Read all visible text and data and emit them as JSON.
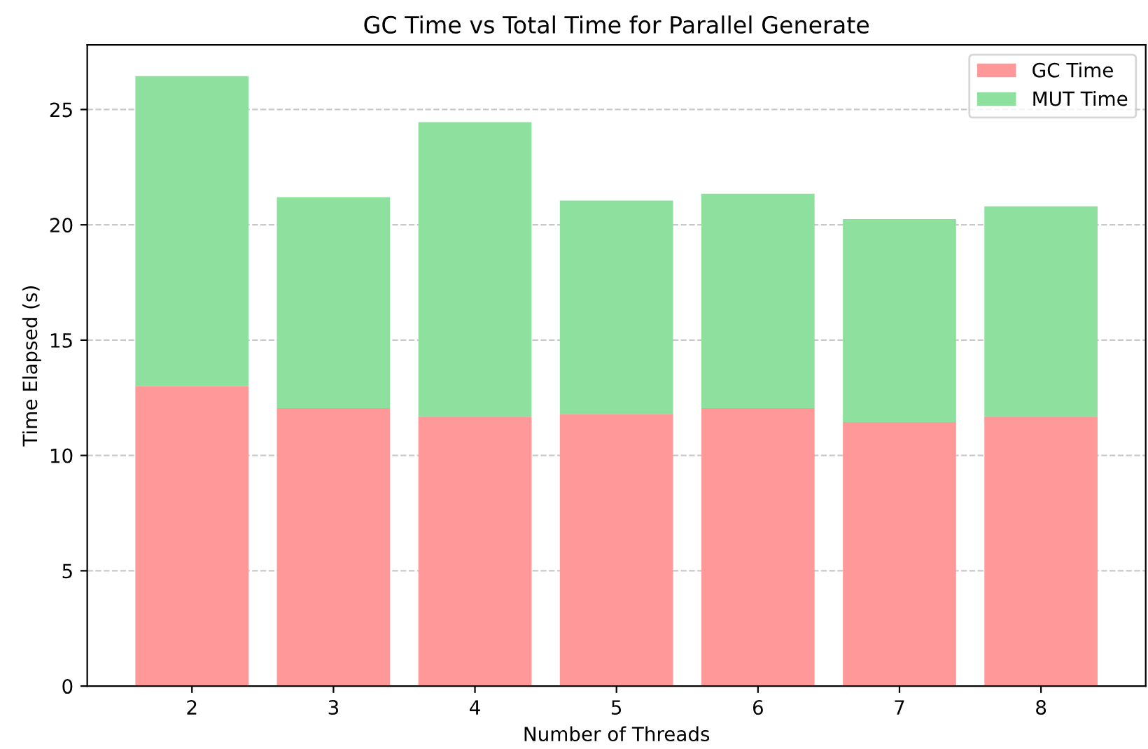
{
  "chart_data": {
    "type": "bar",
    "title": "GC Time vs Total Time for Parallel Generate",
    "xlabel": "Number of Threads",
    "ylabel": "Time Elapsed (s)",
    "categories": [
      "2",
      "3",
      "4",
      "5",
      "6",
      "7",
      "8"
    ],
    "series": [
      {
        "name": "GC Time",
        "color": "#ff9999",
        "values": [
          13.0,
          12.05,
          11.7,
          11.8,
          12.05,
          11.45,
          11.7
        ]
      },
      {
        "name": "MUT Time",
        "color": "#8ee09e",
        "values": [
          13.45,
          9.15,
          12.75,
          9.25,
          9.3,
          8.8,
          9.1
        ]
      }
    ],
    "stacked": true,
    "ylim": [
      0,
      27.8
    ],
    "yticks": [
      0,
      5,
      10,
      15,
      20,
      25
    ],
    "grid": "y",
    "legend": "top right"
  }
}
